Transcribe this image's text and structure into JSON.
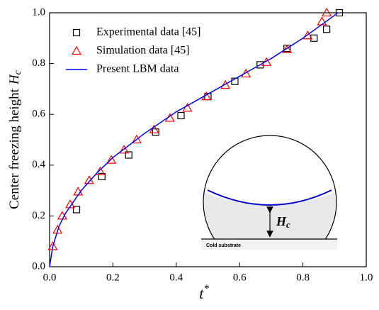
{
  "chart_data": {
    "type": "scatter-line",
    "xlabel": "t",
    "xlabel_sup": "*",
    "ylabel": "Center freezing height",
    "ylabel_symbol": "H",
    "ylabel_sub": "c",
    "xlim": [
      0,
      1.0
    ],
    "ylim": [
      0,
      1.0
    ],
    "xticks": [
      {
        "value": 0,
        "label": "0.0"
      },
      {
        "value": 0.2,
        "label": "0.2"
      },
      {
        "value": 0.4,
        "label": "0.4"
      },
      {
        "value": 0.6,
        "label": "0.6"
      },
      {
        "value": 0.8,
        "label": "0.8"
      },
      {
        "value": 1.0,
        "label": "1.0"
      }
    ],
    "yticks": [
      {
        "value": 0,
        "label": "0.0"
      },
      {
        "value": 0.2,
        "label": "0.2"
      },
      {
        "value": 0.4,
        "label": "0.4"
      },
      {
        "value": 0.6,
        "label": "0.6"
      },
      {
        "value": 0.8,
        "label": "0.8"
      },
      {
        "value": 1.0,
        "label": "1.0"
      }
    ],
    "legend": "upper-left",
    "series": [
      {
        "name": "Experimental data [45]",
        "marker": "square",
        "color": "#000000",
        "x": [
          0.085,
          0.165,
          0.25,
          0.335,
          0.415,
          0.5,
          0.585,
          0.665,
          0.75,
          0.835,
          0.875,
          0.915
        ],
        "values": [
          0.225,
          0.355,
          0.44,
          0.53,
          0.595,
          0.67,
          0.73,
          0.795,
          0.86,
          0.9,
          0.935,
          1.0
        ]
      },
      {
        "name": "Simulation data [45]",
        "marker": "triangle",
        "color": "#ff0000",
        "x": [
          0.01,
          0.025,
          0.04,
          0.065,
          0.09,
          0.125,
          0.16,
          0.195,
          0.235,
          0.275,
          0.33,
          0.38,
          0.435,
          0.495,
          0.555,
          0.62,
          0.685,
          0.75,
          0.815,
          0.86,
          0.875
        ],
        "values": [
          0.08,
          0.145,
          0.2,
          0.245,
          0.295,
          0.34,
          0.375,
          0.42,
          0.46,
          0.5,
          0.54,
          0.585,
          0.625,
          0.67,
          0.715,
          0.76,
          0.805,
          0.855,
          0.91,
          0.965,
          1.0
        ]
      },
      {
        "name": "Present LBM data",
        "marker": "line",
        "color": "#0000ff",
        "x": [
          0,
          0.01,
          0.03,
          0.05,
          0.1,
          0.15,
          0.2,
          0.3,
          0.4,
          0.5,
          0.6,
          0.7,
          0.8,
          0.9,
          0.91
        ],
        "values": [
          0,
          0.08,
          0.16,
          0.21,
          0.3,
          0.37,
          0.43,
          0.525,
          0.61,
          0.68,
          0.75,
          0.82,
          0.9,
          0.99,
          1.0
        ]
      }
    ],
    "inset": {
      "height_symbol": "H",
      "height_sub": "c",
      "substrate_label": "Cold substrate"
    }
  }
}
